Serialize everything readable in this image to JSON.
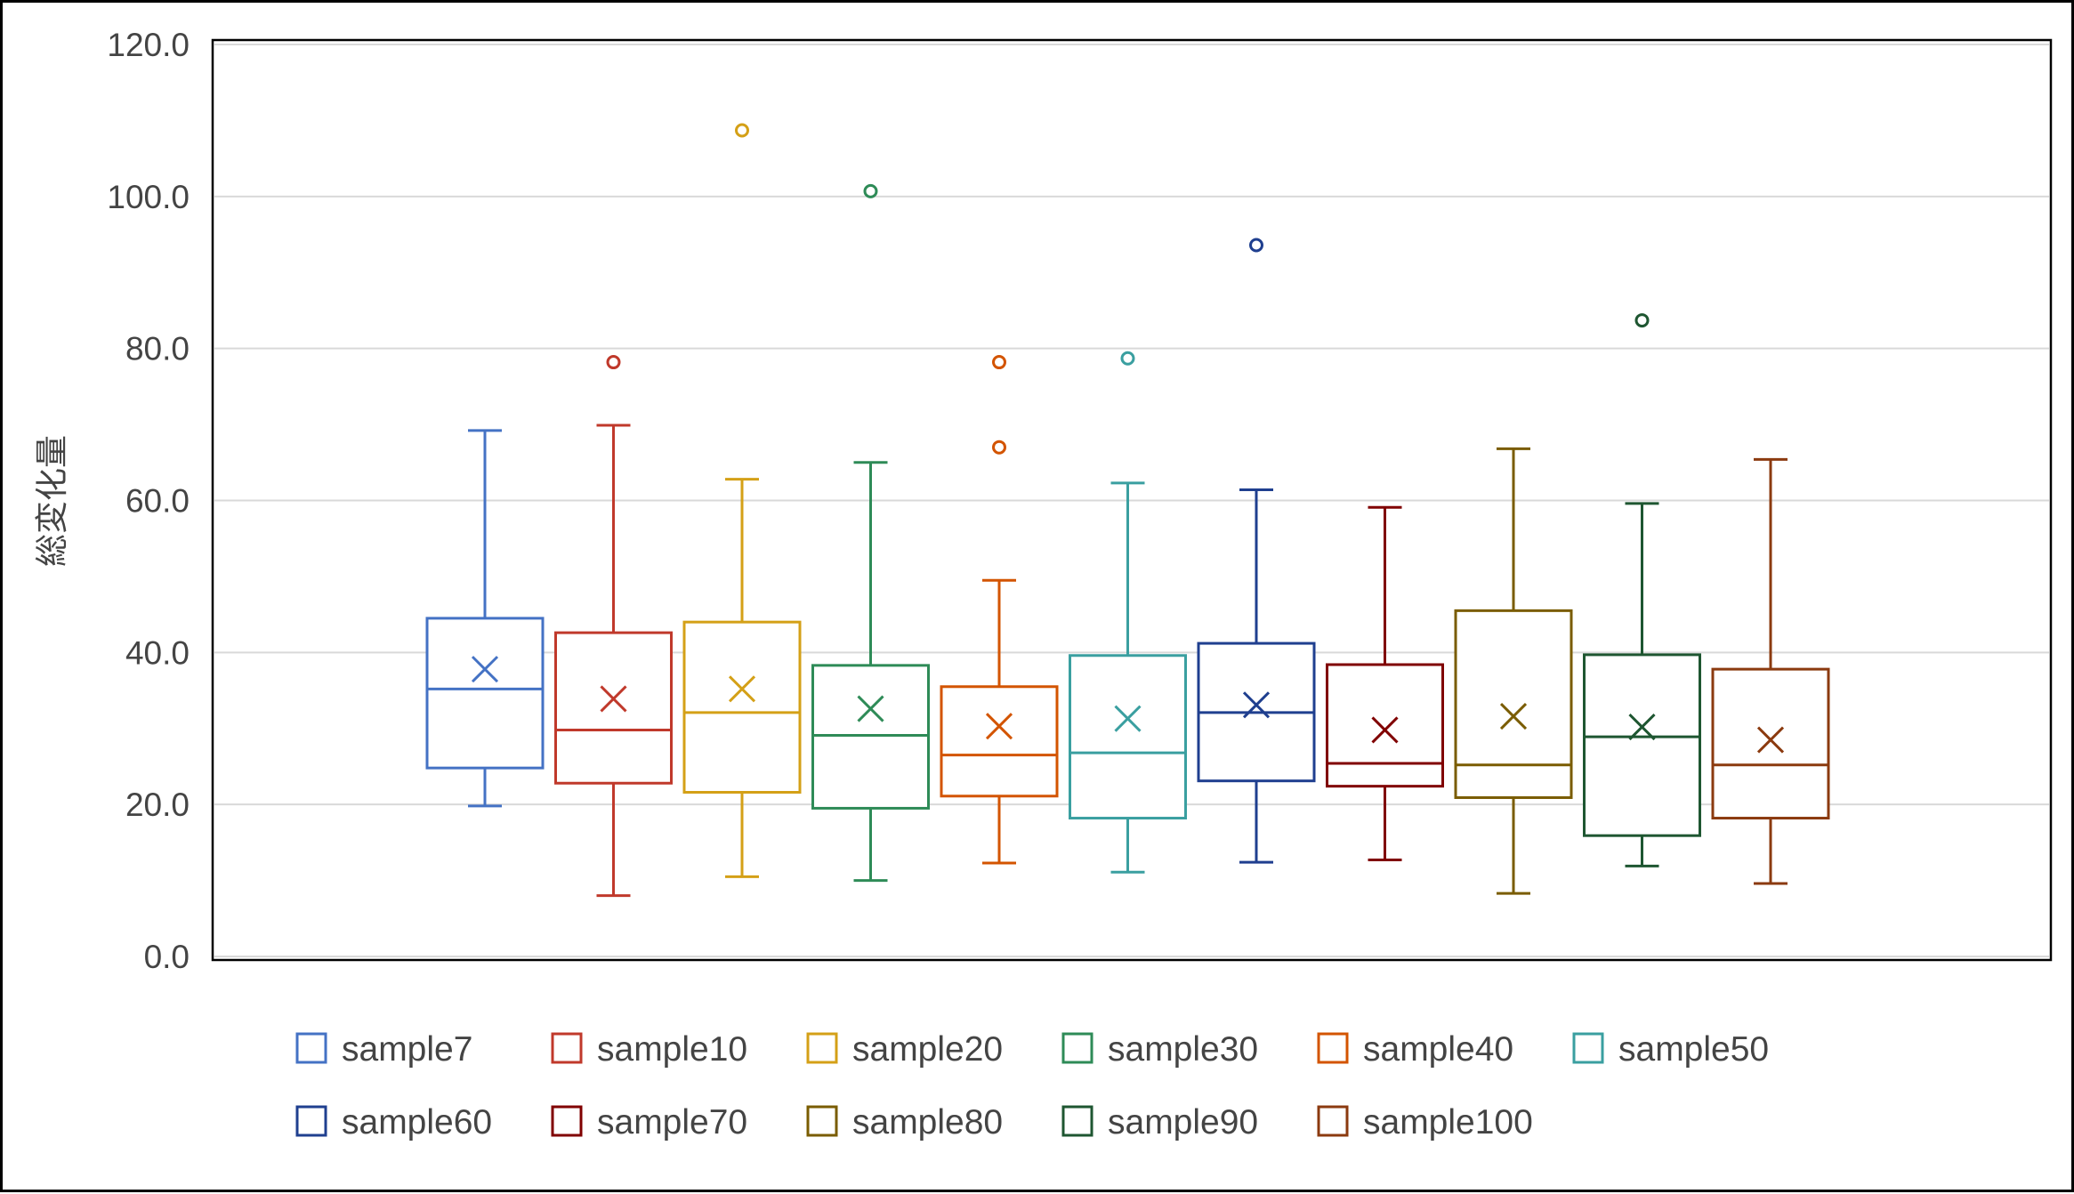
{
  "chart_data": {
    "type": "box",
    "title": "",
    "xlabel": "",
    "ylabel": "総変化量",
    "ylim": [
      0,
      120
    ],
    "yticks": [
      "0.0",
      "20.0",
      "40.0",
      "60.0",
      "80.0",
      "100.0",
      "120.0"
    ],
    "grid": true,
    "legend_position": "bottom",
    "series": [
      {
        "name": "sample7",
        "color": "#4472C4",
        "min": 19.8,
        "q1": 24.8,
        "median": 35.2,
        "q3": 44.5,
        "max": 69.2,
        "mean": 37.8,
        "outliers": []
      },
      {
        "name": "sample10",
        "color": "#C0392B",
        "min": 8.0,
        "q1": 22.8,
        "median": 29.8,
        "q3": 42.6,
        "max": 69.9,
        "mean": 33.9,
        "outliers": [
          78.2
        ]
      },
      {
        "name": "sample20",
        "color": "#D4A017",
        "min": 10.5,
        "q1": 21.6,
        "median": 32.1,
        "q3": 44.0,
        "max": 62.8,
        "mean": 35.2,
        "outliers": [
          108.7
        ]
      },
      {
        "name": "sample30",
        "color": "#2E8B57",
        "min": 10.0,
        "q1": 19.5,
        "median": 29.1,
        "q3": 38.3,
        "max": 65.0,
        "mean": 32.6,
        "outliers": [
          100.7
        ]
      },
      {
        "name": "sample40",
        "color": "#D35400",
        "min": 12.3,
        "q1": 21.1,
        "median": 26.5,
        "q3": 35.5,
        "max": 49.5,
        "mean": 30.3,
        "outliers": [
          67.0,
          78.2
        ]
      },
      {
        "name": "sample50",
        "color": "#3A9FA0",
        "min": 11.1,
        "q1": 18.2,
        "median": 26.8,
        "q3": 39.6,
        "max": 62.3,
        "mean": 31.3,
        "outliers": [
          78.7
        ]
      },
      {
        "name": "sample60",
        "color": "#1F3F8F",
        "min": 12.4,
        "q1": 23.1,
        "median": 32.1,
        "q3": 41.2,
        "max": 61.4,
        "mean": 33.1,
        "outliers": [
          93.6
        ]
      },
      {
        "name": "sample70",
        "color": "#800000",
        "min": 12.7,
        "q1": 22.4,
        "median": 25.4,
        "q3": 38.4,
        "max": 59.1,
        "mean": 29.8,
        "outliers": []
      },
      {
        "name": "sample80",
        "color": "#7A5C00",
        "min": 8.3,
        "q1": 20.9,
        "median": 25.2,
        "q3": 45.5,
        "max": 66.8,
        "mean": 31.6,
        "outliers": []
      },
      {
        "name": "sample90",
        "color": "#1E5631",
        "min": 11.9,
        "q1": 15.9,
        "median": 28.9,
        "q3": 39.7,
        "max": 59.6,
        "mean": 30.2,
        "outliers": [
          83.7
        ]
      },
      {
        "name": "sample100",
        "color": "#8B3A0F",
        "min": 9.6,
        "q1": 18.2,
        "median": 25.2,
        "q3": 37.8,
        "max": 65.4,
        "mean": 28.5,
        "outliers": []
      }
    ]
  }
}
